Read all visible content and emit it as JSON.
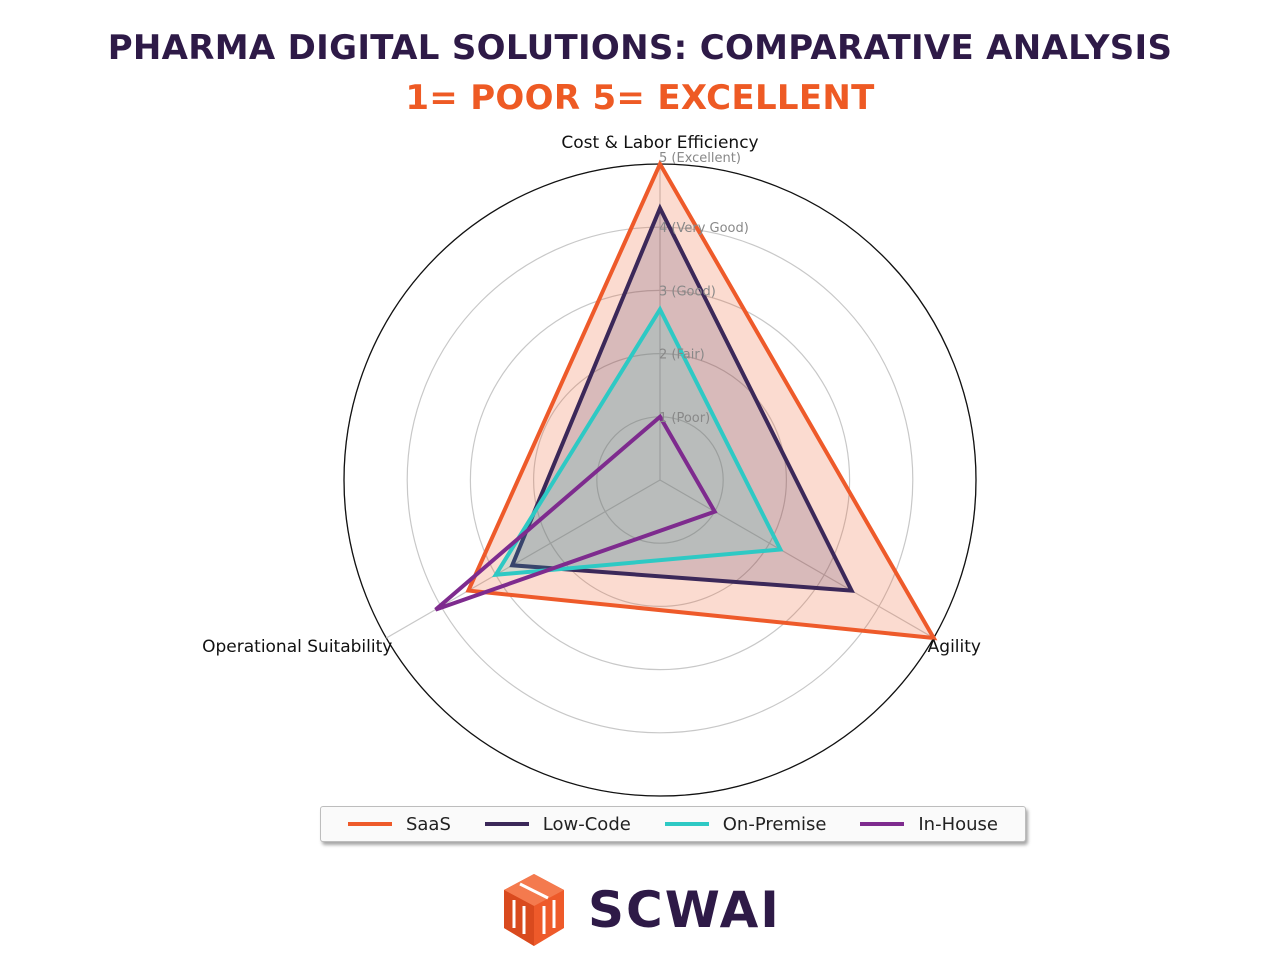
{
  "header": {
    "title": "PHARMA DIGITAL SOLUTIONS: COMPARATIVE ANALYSIS",
    "subtitle": "1= POOR 5= EXCELLENT"
  },
  "colors": {
    "title": "#2e1a47",
    "subtitle": "#ee5a24"
  },
  "chart_data": {
    "type": "radar",
    "axes": [
      "Cost & Labor Efficiency",
      "Agility",
      "Operational Suitability"
    ],
    "rlim": [
      0,
      5
    ],
    "ticks": [
      {
        "value": 1,
        "label": "1 (Poor)"
      },
      {
        "value": 2,
        "label": "2 (Fair)"
      },
      {
        "value": 3,
        "label": "3 (Good)"
      },
      {
        "value": 4,
        "label": "4 (Very Good)"
      },
      {
        "value": 5,
        "label": "5 (Excellent)"
      }
    ],
    "series": [
      {
        "name": "SaaS",
        "color": "#ee5a2a",
        "filled": true,
        "values": [
          5,
          5,
          3.5
        ]
      },
      {
        "name": "Low-Code",
        "color": "#3b2859",
        "filled": true,
        "values": [
          4.3,
          3.5,
          2.7
        ]
      },
      {
        "name": "On-Premise",
        "color": "#2ec9c4",
        "filled": true,
        "values": [
          2.7,
          2.2,
          3.0
        ]
      },
      {
        "name": "In-House",
        "color": "#7e2b8e",
        "filled": false,
        "values": [
          1.0,
          1.0,
          4.1
        ]
      }
    ],
    "legend_position": "bottom"
  },
  "logo": {
    "text": "SCWAI",
    "icon": "cube-logo-icon"
  }
}
